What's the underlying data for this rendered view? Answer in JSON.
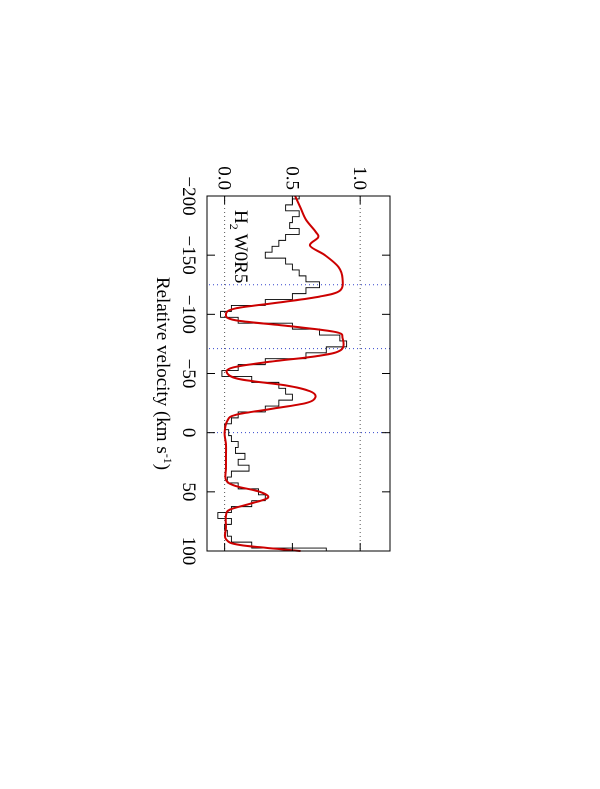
{
  "chart_data": {
    "type": "line",
    "rotated": true,
    "label_species": "H",
    "label_sub": "2",
    "label_line": "W0R5",
    "xlabel": "Relative velocity (km s",
    "xlabel_sup": "-1",
    "xlabel_end": ")",
    "xlim": [
      -200,
      100
    ],
    "xticks": [
      {
        "value": -200,
        "label": "−200"
      },
      {
        "value": -150,
        "label": "−150"
      },
      {
        "value": -100,
        "label": "−100"
      },
      {
        "value": -50,
        "label": "−50"
      },
      0,
      50,
      100
    ],
    "ylim": [
      -0.13,
      1.22
    ],
    "yticks": [
      {
        "value": 0,
        "label": "0.0"
      },
      0.5,
      {
        "value": 1,
        "label": "1.0"
      }
    ],
    "reference_flux": [
      0,
      1
    ],
    "reference_velocity": [
      -125,
      -71,
      0
    ],
    "series": [
      {
        "name": "data",
        "style": "step",
        "color": "#000000",
        "x": [
          -200,
          -195,
          -190,
          -185,
          -180,
          -175,
          -170,
          -165,
          -160,
          -155,
          -150,
          -145,
          -140,
          -135,
          -130,
          -125,
          -120,
          -115,
          -110,
          -105,
          -100,
          -95,
          -90,
          -85,
          -80,
          -75,
          -70,
          -65,
          -60,
          -55,
          -50,
          -45,
          -40,
          -35,
          -30,
          -25,
          -20,
          -15,
          -10,
          -5,
          0,
          5,
          10,
          15,
          20,
          25,
          30,
          35,
          40,
          45,
          50,
          55,
          60,
          65,
          70,
          75,
          80,
          85,
          90,
          95,
          100
        ],
        "values": [
          0.55,
          0.5,
          0.45,
          0.55,
          0.5,
          0.48,
          0.55,
          0.45,
          0.4,
          0.35,
          0.3,
          0.45,
          0.5,
          0.55,
          0.6,
          0.7,
          0.6,
          0.5,
          0.3,
          0.05,
          -0.03,
          0.1,
          0.5,
          0.7,
          0.85,
          0.9,
          0.75,
          0.6,
          0.3,
          0.1,
          -0.02,
          0.2,
          0.4,
          0.45,
          0.5,
          0.4,
          0.3,
          0.1,
          0.05,
          0,
          0.03,
          0.05,
          0.1,
          0.08,
          0.15,
          0.1,
          0.18,
          0.05,
          0.02,
          0.1,
          0.25,
          0.3,
          0.2,
          0.05,
          -0.05,
          0.05,
          0,
          0.02,
          0.05,
          0.2,
          0.75
        ]
      },
      {
        "name": "model",
        "style": "smooth",
        "color": "#cc0000",
        "x": [
          -200,
          -190,
          -180,
          -170,
          -165,
          -158,
          -150,
          -140,
          -130,
          -120,
          -115,
          -110,
          -105,
          -100,
          -95,
          -90,
          -85,
          -80,
          -70,
          -65,
          -60,
          -55,
          -50,
          -45,
          -40,
          -35,
          -30,
          -25,
          -20,
          -15,
          -10,
          0,
          10,
          20,
          30,
          40,
          45,
          50,
          55,
          60,
          65,
          70,
          80,
          90,
          95,
          100
        ],
        "values": [
          0.52,
          0.56,
          0.6,
          0.67,
          0.69,
          0.63,
          0.74,
          0.84,
          0.87,
          0.85,
          0.7,
          0.4,
          0.08,
          0.01,
          0.08,
          0.48,
          0.82,
          0.87,
          0.86,
          0.7,
          0.34,
          0.06,
          0.02,
          0.12,
          0.45,
          0.63,
          0.67,
          0.6,
          0.34,
          0.08,
          0.02,
          0,
          0.01,
          0.01,
          0.01,
          0.01,
          0.08,
          0.26,
          0.32,
          0.19,
          0.04,
          0.01,
          0.01,
          0.01,
          0.12,
          0.56
        ]
      }
    ]
  }
}
